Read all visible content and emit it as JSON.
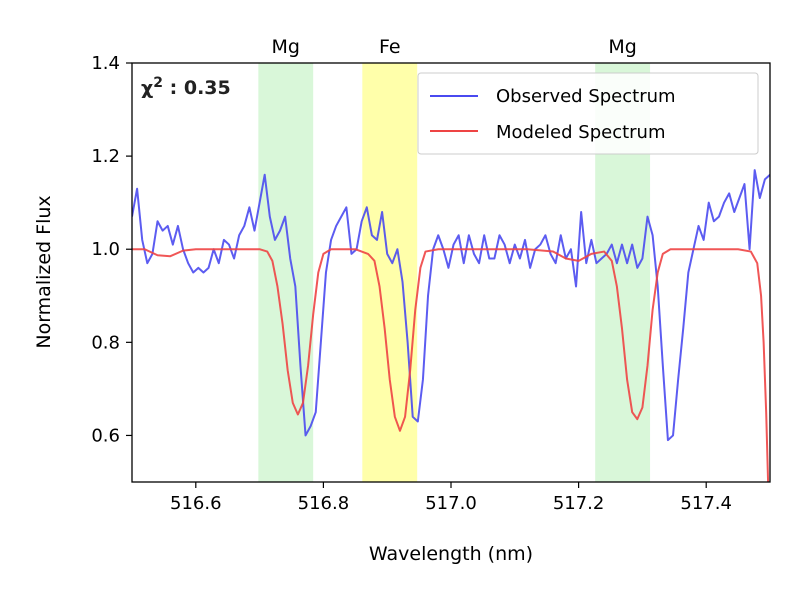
{
  "chart_data": {
    "type": "line",
    "xlabel": "Wavelength (nm)",
    "ylabel": "Normalized Flux",
    "xlim": [
      516.5,
      517.5
    ],
    "ylim": [
      0.5,
      1.4
    ],
    "xticks": [
      516.6,
      516.8,
      517.0,
      517.2,
      517.4
    ],
    "xtick_labels": [
      "516.6",
      "516.8",
      "517.0",
      "517.2",
      "517.4"
    ],
    "yticks": [
      0.6,
      0.8,
      1.0,
      1.2,
      1.4
    ],
    "ytick_labels": [
      "0.6",
      "0.8",
      "1.0",
      "1.2",
      "1.4"
    ],
    "chi_label": "χ",
    "chi_sup": "2",
    "chi_value": " : 0.35",
    "legend_position": "top-right",
    "bands": [
      {
        "label": "Mg",
        "x0": 516.698,
        "x1": 516.784,
        "color": "#d9f7d9"
      },
      {
        "label": "Fe",
        "x0": 516.861,
        "x1": 516.947,
        "color": "#ffffaa"
      },
      {
        "label": "Mg",
        "x0": 517.226,
        "x1": 517.312,
        "color": "#d9f7d9"
      }
    ],
    "series": [
      {
        "name": "Observed Spectrum",
        "color": "#4a4af0",
        "points": [
          [
            516.5,
            1.07
          ],
          [
            516.508,
            1.13
          ],
          [
            516.516,
            1.02
          ],
          [
            516.524,
            0.97
          ],
          [
            516.532,
            0.99
          ],
          [
            516.54,
            1.06
          ],
          [
            516.548,
            1.04
          ],
          [
            516.556,
            1.05
          ],
          [
            516.564,
            1.01
          ],
          [
            516.572,
            1.05
          ],
          [
            516.58,
            1.0
          ],
          [
            516.588,
            0.97
          ],
          [
            516.596,
            0.95
          ],
          [
            516.604,
            0.96
          ],
          [
            516.612,
            0.95
          ],
          [
            516.62,
            0.96
          ],
          [
            516.628,
            1.0
          ],
          [
            516.636,
            0.97
          ],
          [
            516.644,
            1.02
          ],
          [
            516.652,
            1.01
          ],
          [
            516.66,
            0.98
          ],
          [
            516.668,
            1.03
          ],
          [
            516.676,
            1.05
          ],
          [
            516.684,
            1.09
          ],
          [
            516.692,
            1.04
          ],
          [
            516.7,
            1.1
          ],
          [
            516.708,
            1.16
          ],
          [
            516.716,
            1.07
          ],
          [
            516.724,
            1.02
          ],
          [
            516.732,
            1.04
          ],
          [
            516.74,
            1.07
          ],
          [
            516.748,
            0.98
          ],
          [
            516.756,
            0.92
          ],
          [
            516.764,
            0.75
          ],
          [
            516.772,
            0.6
          ],
          [
            516.78,
            0.62
          ],
          [
            516.788,
            0.65
          ],
          [
            516.796,
            0.8
          ],
          [
            516.804,
            0.95
          ],
          [
            516.812,
            1.02
          ],
          [
            516.82,
            1.05
          ],
          [
            516.828,
            1.07
          ],
          [
            516.836,
            1.09
          ],
          [
            516.844,
            0.99
          ],
          [
            516.852,
            1.0
          ],
          [
            516.86,
            1.06
          ],
          [
            516.868,
            1.09
          ],
          [
            516.876,
            1.03
          ],
          [
            516.884,
            1.02
          ],
          [
            516.892,
            1.08
          ],
          [
            516.9,
            0.99
          ],
          [
            516.908,
            0.97
          ],
          [
            516.916,
            1.0
          ],
          [
            516.924,
            0.93
          ],
          [
            516.932,
            0.8
          ],
          [
            516.94,
            0.64
          ],
          [
            516.948,
            0.63
          ],
          [
            516.956,
            0.72
          ],
          [
            516.964,
            0.9
          ],
          [
            516.972,
            1.0
          ],
          [
            516.98,
            1.03
          ],
          [
            516.988,
            1.0
          ],
          [
            516.996,
            0.96
          ],
          [
            517.004,
            1.01
          ],
          [
            517.012,
            1.03
          ],
          [
            517.02,
            0.97
          ],
          [
            517.028,
            1.03
          ],
          [
            517.036,
            0.99
          ],
          [
            517.044,
            0.97
          ],
          [
            517.052,
            1.03
          ],
          [
            517.06,
            0.98
          ],
          [
            517.068,
            0.98
          ],
          [
            517.076,
            1.03
          ],
          [
            517.084,
            1.01
          ],
          [
            517.092,
            0.97
          ],
          [
            517.1,
            1.01
          ],
          [
            517.108,
            0.98
          ],
          [
            517.116,
            1.02
          ],
          [
            517.124,
            0.96
          ],
          [
            517.132,
            1.0
          ],
          [
            517.14,
            1.01
          ],
          [
            517.148,
            1.03
          ],
          [
            517.156,
            0.99
          ],
          [
            517.164,
            0.97
          ],
          [
            517.172,
            1.03
          ],
          [
            517.18,
            0.98
          ],
          [
            517.188,
            1.0
          ],
          [
            517.196,
            0.92
          ],
          [
            517.204,
            1.08
          ],
          [
            517.212,
            0.97
          ],
          [
            517.22,
            1.02
          ],
          [
            517.228,
            0.97
          ],
          [
            517.236,
            0.98
          ],
          [
            517.244,
            0.99
          ],
          [
            517.252,
            1.01
          ],
          [
            517.26,
            0.97
          ],
          [
            517.268,
            1.01
          ],
          [
            517.276,
            0.97
          ],
          [
            517.284,
            1.01
          ],
          [
            517.292,
            0.96
          ],
          [
            517.3,
            0.98
          ],
          [
            517.308,
            1.07
          ],
          [
            517.316,
            1.03
          ],
          [
            517.324,
            0.92
          ],
          [
            517.332,
            0.75
          ],
          [
            517.34,
            0.59
          ],
          [
            517.348,
            0.6
          ],
          [
            517.356,
            0.72
          ],
          [
            517.364,
            0.83
          ],
          [
            517.372,
            0.95
          ],
          [
            517.38,
            1.0
          ],
          [
            517.388,
            1.05
          ],
          [
            517.396,
            1.02
          ],
          [
            517.404,
            1.1
          ],
          [
            517.412,
            1.06
          ],
          [
            517.42,
            1.07
          ],
          [
            517.428,
            1.1
          ],
          [
            517.436,
            1.12
          ],
          [
            517.444,
            1.08
          ],
          [
            517.452,
            1.11
          ],
          [
            517.46,
            1.14
          ],
          [
            517.468,
            1.0
          ],
          [
            517.476,
            1.17
          ],
          [
            517.484,
            1.11
          ],
          [
            517.492,
            1.15
          ],
          [
            517.5,
            1.16
          ]
        ]
      },
      {
        "name": "Modeled Spectrum",
        "color": "#ee4444",
        "points": [
          [
            516.5,
            1.0
          ],
          [
            516.52,
            1.0
          ],
          [
            516.54,
            0.987
          ],
          [
            516.56,
            0.985
          ],
          [
            516.58,
            0.997
          ],
          [
            516.6,
            1.0
          ],
          [
            516.62,
            1.0
          ],
          [
            516.64,
            1.0
          ],
          [
            516.66,
            1.0
          ],
          [
            516.68,
            1.0
          ],
          [
            516.7,
            1.0
          ],
          [
            516.712,
            0.995
          ],
          [
            516.72,
            0.975
          ],
          [
            516.728,
            0.92
          ],
          [
            516.736,
            0.84
          ],
          [
            516.744,
            0.74
          ],
          [
            516.752,
            0.67
          ],
          [
            516.76,
            0.645
          ],
          [
            516.768,
            0.67
          ],
          [
            516.776,
            0.75
          ],
          [
            516.784,
            0.86
          ],
          [
            516.792,
            0.95
          ],
          [
            516.8,
            0.99
          ],
          [
            516.812,
            1.0
          ],
          [
            516.83,
            1.0
          ],
          [
            516.85,
            1.0
          ],
          [
            516.87,
            0.99
          ],
          [
            516.88,
            0.975
          ],
          [
            516.888,
            0.92
          ],
          [
            516.896,
            0.83
          ],
          [
            516.904,
            0.72
          ],
          [
            516.912,
            0.64
          ],
          [
            516.92,
            0.61
          ],
          [
            516.928,
            0.64
          ],
          [
            516.936,
            0.74
          ],
          [
            516.944,
            0.87
          ],
          [
            516.952,
            0.96
          ],
          [
            516.96,
            0.995
          ],
          [
            516.98,
            1.0
          ],
          [
            517.0,
            1.0
          ],
          [
            517.04,
            1.0
          ],
          [
            517.08,
            1.0
          ],
          [
            517.12,
            1.0
          ],
          [
            517.16,
            0.995
          ],
          [
            517.18,
            0.98
          ],
          [
            517.2,
            0.975
          ],
          [
            517.22,
            0.99
          ],
          [
            517.24,
            0.995
          ],
          [
            517.252,
            0.975
          ],
          [
            517.26,
            0.92
          ],
          [
            517.268,
            0.83
          ],
          [
            517.276,
            0.72
          ],
          [
            517.284,
            0.65
          ],
          [
            517.292,
            0.635
          ],
          [
            517.3,
            0.66
          ],
          [
            517.308,
            0.75
          ],
          [
            517.316,
            0.87
          ],
          [
            517.324,
            0.95
          ],
          [
            517.332,
            0.99
          ],
          [
            517.344,
            1.0
          ],
          [
            517.38,
            1.0
          ],
          [
            517.42,
            1.0
          ],
          [
            517.45,
            1.0
          ],
          [
            517.47,
            0.995
          ],
          [
            517.48,
            0.97
          ],
          [
            517.486,
            0.9
          ],
          [
            517.49,
            0.8
          ],
          [
            517.494,
            0.65
          ],
          [
            517.497,
            0.5
          ]
        ]
      }
    ]
  }
}
